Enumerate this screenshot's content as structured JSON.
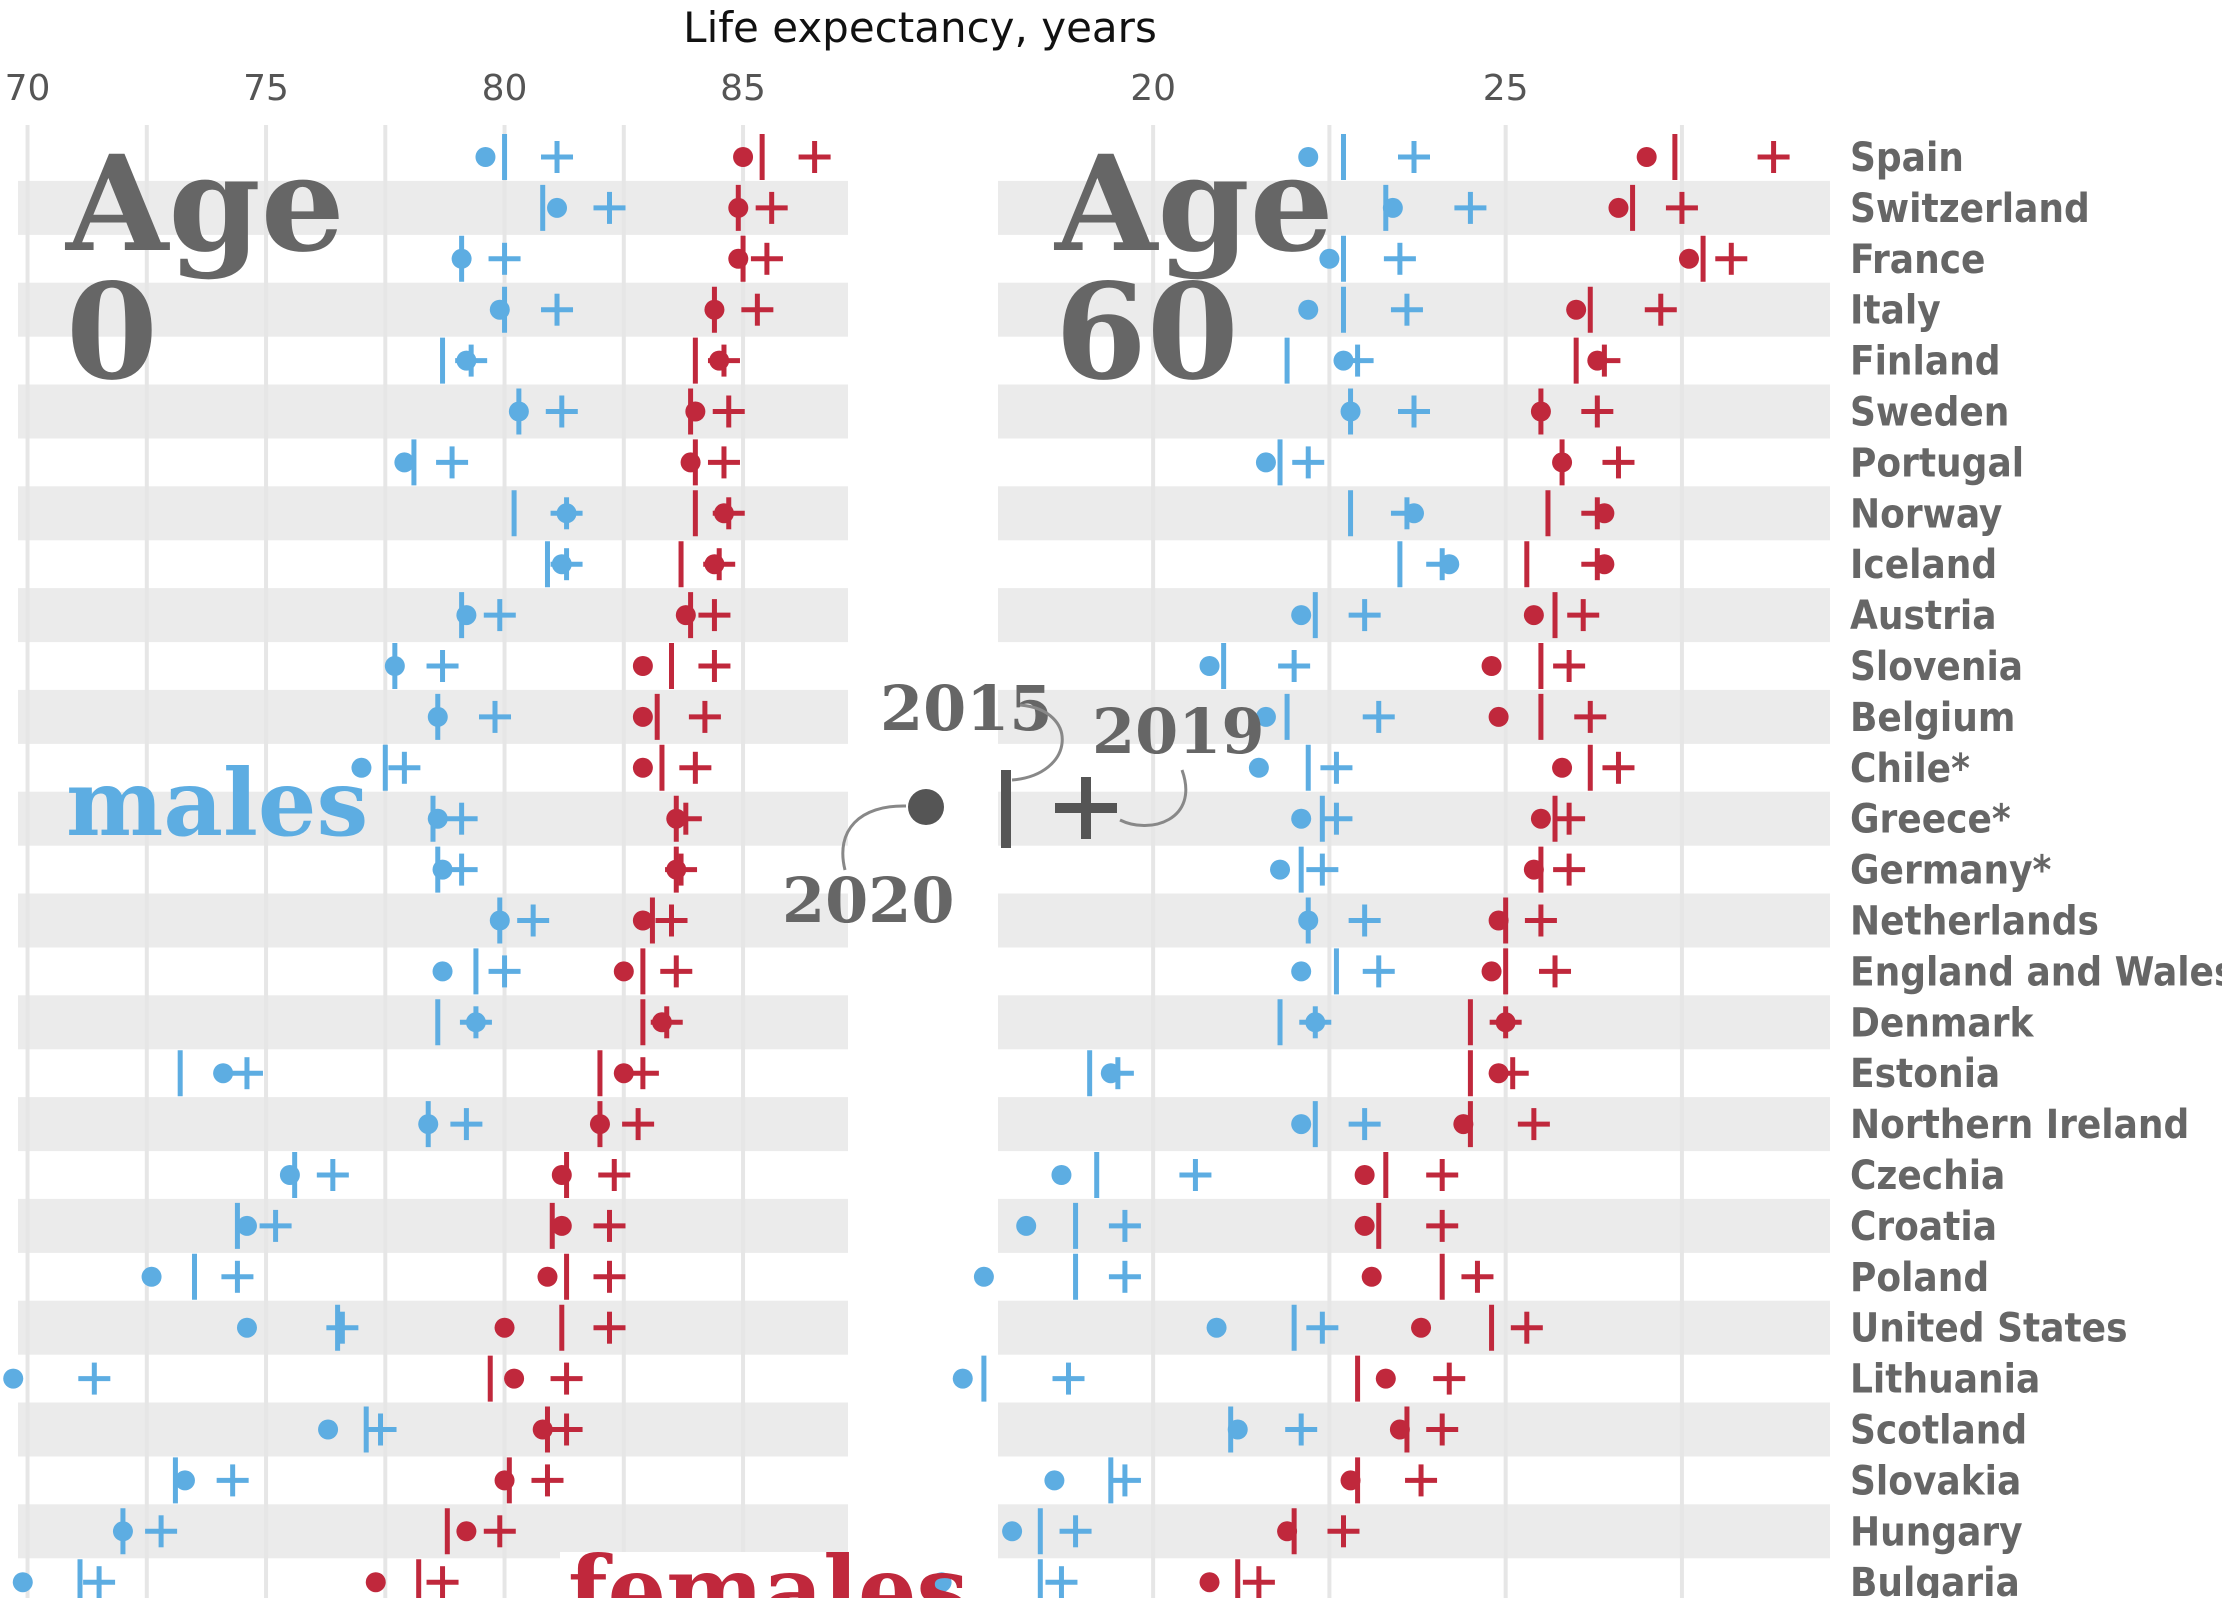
{
  "chart_data": {
    "type": "dot-range",
    "title": "Life expectancy, years",
    "colors": {
      "males": "#5dade2",
      "females": "#c0283c",
      "legend": "#555555",
      "band": "#ebebeb",
      "grid": "#e6e6e6"
    },
    "legend": {
      "year_2015": "2015",
      "year_2019": "2019",
      "year_2020": "2020",
      "marker_2015": "vertical bar",
      "marker_2019": "plus",
      "marker_2020": "dot"
    },
    "countries": [
      "Spain",
      "Switzerland",
      "France",
      "Italy",
      "Finland",
      "Sweden",
      "Portugal",
      "Norway",
      "Iceland",
      "Austria",
      "Slovenia",
      "Belgium",
      "Chile*",
      "Greece*",
      "Germany*",
      "Netherlands",
      "England and Wales",
      "Denmark",
      "Estonia",
      "Northern Ireland",
      "Czechia",
      "Croatia",
      "Poland",
      "United States",
      "Lithuania",
      "Scotland",
      "Slovakia",
      "Hungary",
      "Bulgaria"
    ],
    "panels": [
      {
        "title_line1": "Age",
        "title_line2": "0",
        "sex_label": "males",
        "axis_min": 69.8,
        "axis_max": 87.2,
        "ticks": [
          70,
          75,
          80,
          85
        ],
        "tick_labels": [
          "70",
          "75",
          "80",
          "85"
        ],
        "series": [
          {
            "name": "males",
            "y2015": [
              80.0,
              80.8,
              79.1,
              80.0,
              78.7,
              80.3,
              78.1,
              80.2,
              80.9,
              79.1,
              77.7,
              78.6,
              77.5,
              78.5,
              78.6,
              79.9,
              79.4,
              78.6,
              73.2,
              78.4,
              75.6,
              74.4,
              73.5,
              76.5,
              69.0,
              77.1,
              73.1,
              72.0,
              71.1
            ],
            "y2019": [
              81.1,
              82.2,
              80.0,
              81.1,
              79.3,
              81.2,
              78.9,
              81.3,
              81.3,
              79.9,
              78.7,
              79.8,
              77.9,
              79.1,
              79.1,
              80.6,
              80.0,
              79.4,
              74.6,
              79.2,
              76.4,
              75.2,
              74.4,
              76.6,
              71.4,
              77.4,
              74.3,
              72.8,
              71.5
            ],
            "y2020": [
              79.6,
              81.1,
              79.1,
              79.9,
              79.2,
              80.3,
              77.9,
              81.3,
              81.2,
              79.2,
              77.7,
              78.6,
              77.0,
              78.6,
              78.7,
              79.9,
              78.7,
              79.4,
              74.1,
              78.4,
              75.5,
              74.6,
              72.6,
              74.6,
              69.7,
              76.3,
              73.3,
              72.0,
              69.9
            ]
          },
          {
            "name": "females",
            "y2015": [
              85.4,
              84.9,
              85.0,
              84.4,
              84.0,
              83.9,
              84.0,
              84.0,
              83.7,
              83.9,
              83.5,
              83.2,
              83.3,
              83.6,
              83.6,
              83.1,
              82.9,
              82.9,
              82.0,
              82.0,
              81.3,
              81.0,
              81.3,
              81.2,
              79.7,
              80.9,
              80.1,
              78.8,
              78.2
            ],
            "y2019": [
              86.5,
              85.6,
              85.5,
              85.3,
              84.6,
              84.7,
              84.6,
              84.7,
              84.5,
              84.4,
              84.4,
              84.2,
              84.0,
              83.8,
              83.7,
              83.5,
              83.6,
              83.4,
              82.9,
              82.8,
              82.3,
              82.2,
              82.2,
              82.2,
              81.3,
              81.3,
              80.9,
              79.9,
              78.7
            ],
            "y2020": [
              85.0,
              84.9,
              84.9,
              84.4,
              84.5,
              84.0,
              83.9,
              84.6,
              84.4,
              83.8,
              82.9,
              82.9,
              82.9,
              83.6,
              83.6,
              82.9,
              82.5,
              83.3,
              82.5,
              82.0,
              81.2,
              81.2,
              80.9,
              80.0,
              80.2,
              80.8,
              80.0,
              79.2,
              77.3
            ]
          }
        ]
      },
      {
        "title_line1": "Age",
        "title_line2": "60",
        "sex_label": "females",
        "axis_min": 17.8,
        "axis_max": 29.6,
        "ticks": [
          20,
          25
        ],
        "tick_labels": [
          "20",
          "25"
        ],
        "series": [
          {
            "name": "males",
            "y2015": [
              22.7,
              23.3,
              22.7,
              22.7,
              21.9,
              22.8,
              21.8,
              22.8,
              23.5,
              22.3,
              21.0,
              21.9,
              22.2,
              22.4,
              22.1,
              22.2,
              22.6,
              21.8,
              19.1,
              22.3,
              19.2,
              18.9,
              18.9,
              22.0,
              17.6,
              21.1,
              19.4,
              18.4,
              18.4
            ],
            "y2019": [
              23.7,
              24.5,
              23.5,
              23.6,
              22.9,
              23.7,
              22.2,
              23.6,
              24.1,
              23.0,
              22.0,
              23.2,
              22.6,
              22.6,
              22.4,
              23.0,
              23.2,
              22.3,
              19.5,
              23.0,
              20.6,
              19.6,
              19.6,
              22.4,
              18.8,
              22.1,
              19.6,
              18.9,
              18.7
            ],
            "y2020": [
              22.2,
              23.4,
              22.5,
              22.2,
              22.7,
              22.8,
              21.6,
              23.7,
              24.2,
              22.1,
              20.8,
              21.6,
              21.5,
              22.1,
              21.8,
              22.2,
              22.1,
              22.3,
              19.4,
              22.1,
              18.7,
              18.2,
              17.6,
              20.9,
              17.3,
              21.2,
              18.6,
              18.0,
              17.0
            ],
            "label_year": "2015"
          },
          {
            "name": "females",
            "y2015": [
              27.4,
              26.8,
              27.8,
              26.2,
              26.0,
              25.5,
              25.8,
              25.6,
              25.3,
              25.7,
              25.5,
              25.5,
              26.2,
              25.7,
              25.5,
              25.0,
              25.0,
              24.5,
              24.5,
              24.5,
              23.3,
              23.2,
              24.1,
              24.8,
              22.9,
              23.6,
              22.9,
              22.0,
              21.2
            ],
            "y2019": [
              28.8,
              27.5,
              28.2,
              27.2,
              26.4,
              26.3,
              26.6,
              26.3,
              26.3,
              26.1,
              25.9,
              26.2,
              26.6,
              25.9,
              25.9,
              25.5,
              25.7,
              25.0,
              25.1,
              25.4,
              24.1,
              24.1,
              24.6,
              25.3,
              24.2,
              24.1,
              23.8,
              22.7,
              21.5
            ],
            "y2020": [
              27.0,
              26.6,
              27.6,
              26.0,
              26.3,
              25.5,
              25.8,
              26.4,
              26.4,
              25.4,
              24.8,
              24.9,
              25.8,
              25.5,
              25.4,
              24.9,
              24.8,
              25.0,
              24.9,
              24.4,
              23.0,
              23.0,
              23.1,
              23.8,
              23.3,
              23.5,
              22.8,
              21.9,
              20.8
            ]
          }
        ]
      }
    ]
  }
}
